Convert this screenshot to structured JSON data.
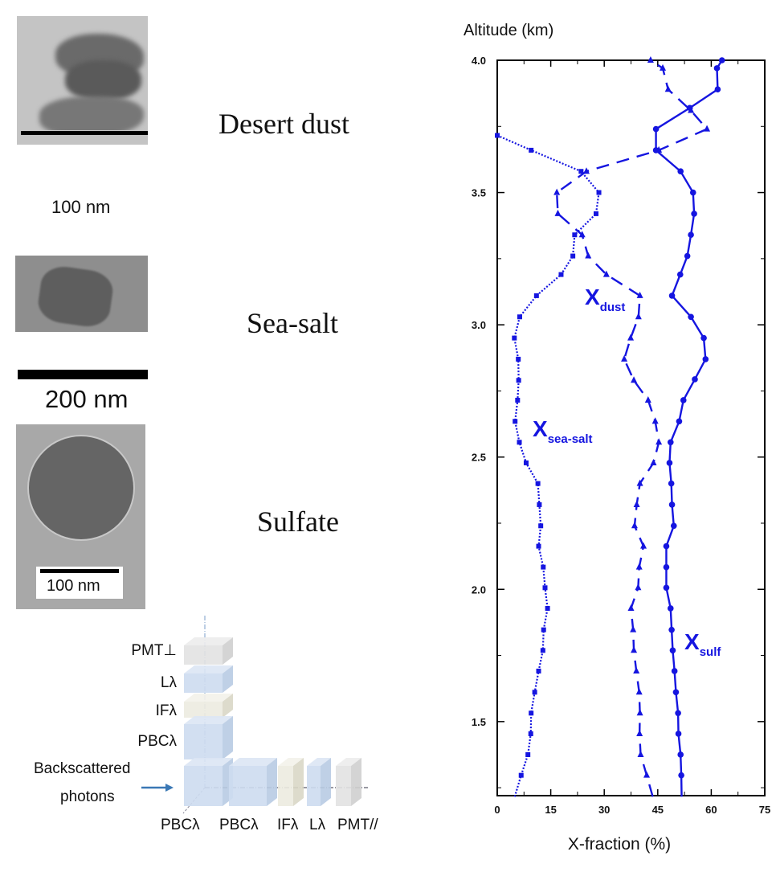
{
  "particles": [
    {
      "name": "Desert dust",
      "scale": "100 nm"
    },
    {
      "name": "Sea-salt",
      "scale": "200 nm"
    },
    {
      "name": "Sulfate",
      "scale": "100 nm"
    }
  ],
  "diagram": {
    "vertical_labels": [
      "PMT⊥",
      "Lλ",
      "IFλ",
      "PBCλ"
    ],
    "input_label_1": "Backscattered",
    "input_label_2": "photons",
    "horizontal_labels": [
      "PBCλ",
      "PBCλ",
      "IFλ",
      "Lλ",
      "PMT//"
    ]
  },
  "chart_data": {
    "type": "line",
    "orientation": "vertical-profile",
    "title": "",
    "xlabel": "X-fraction (%)",
    "ylabel": "Altitude (km)",
    "xlim": [
      0,
      75
    ],
    "ylim": [
      1.22,
      4.0
    ],
    "xticks": [
      "0",
      "15",
      "30",
      "45",
      "60",
      "75"
    ],
    "yticks": [
      "1.5",
      "2.0",
      "2.5",
      "3.0",
      "3.5",
      "4.0"
    ],
    "grid": false,
    "color": "#1515e0",
    "series": [
      {
        "name": "X",
        "sub": "sulf",
        "marker": "circle",
        "style": "solid",
        "points": [
          [
            51.7,
            1.216
          ],
          [
            51.6,
            1.297
          ],
          [
            51.4,
            1.375
          ],
          [
            50.8,
            1.454
          ],
          [
            50.7,
            1.532
          ],
          [
            50.1,
            1.611
          ],
          [
            49.7,
            1.691
          ],
          [
            49.2,
            1.769
          ],
          [
            48.9,
            1.847
          ],
          [
            48.6,
            1.928
          ],
          [
            47.4,
            2.006
          ],
          [
            47.4,
            2.084
          ],
          [
            47.4,
            2.163
          ],
          [
            49.5,
            2.24
          ],
          [
            49.0,
            2.32
          ],
          [
            48.8,
            2.4
          ],
          [
            48.3,
            2.478
          ],
          [
            48.6,
            2.556
          ],
          [
            51.0,
            2.635
          ],
          [
            52.2,
            2.715
          ],
          [
            55.4,
            2.794
          ],
          [
            58.4,
            2.87
          ],
          [
            57.9,
            2.95
          ],
          [
            54.3,
            3.03
          ],
          [
            49.0,
            3.11
          ],
          [
            51.3,
            3.19
          ],
          [
            53.3,
            3.26
          ],
          [
            54.3,
            3.34
          ],
          [
            55.2,
            3.42
          ],
          [
            54.9,
            3.5
          ],
          [
            51.4,
            3.58
          ],
          [
            44.5,
            3.66
          ],
          [
            44.5,
            3.74
          ],
          [
            54.0,
            3.82
          ],
          [
            61.8,
            3.89
          ],
          [
            61.6,
            3.97
          ],
          [
            63.0,
            4.0
          ]
        ]
      },
      {
        "name": "X",
        "sub": "sea-salt",
        "marker": "square",
        "style": "dotted",
        "points": [
          [
            4.9,
            1.216
          ],
          [
            6.7,
            1.297
          ],
          [
            8.6,
            1.375
          ],
          [
            9.4,
            1.454
          ],
          [
            9.5,
            1.532
          ],
          [
            10.5,
            1.611
          ],
          [
            11.6,
            1.691
          ],
          [
            12.8,
            1.769
          ],
          [
            13.0,
            1.847
          ],
          [
            14.1,
            1.928
          ],
          [
            13.4,
            2.006
          ],
          [
            12.9,
            2.084
          ],
          [
            11.6,
            2.163
          ],
          [
            12.2,
            2.24
          ],
          [
            11.8,
            2.32
          ],
          [
            11.4,
            2.4
          ],
          [
            8.1,
            2.478
          ],
          [
            6.2,
            2.556
          ],
          [
            5.0,
            2.635
          ],
          [
            5.7,
            2.715
          ],
          [
            6.0,
            2.79
          ],
          [
            5.9,
            2.87
          ],
          [
            4.8,
            2.95
          ],
          [
            6.3,
            3.03
          ],
          [
            11.0,
            3.11
          ],
          [
            17.9,
            3.19
          ],
          [
            21.2,
            3.26
          ],
          [
            21.7,
            3.34
          ],
          [
            27.7,
            3.42
          ],
          [
            28.5,
            3.5
          ],
          [
            23.5,
            3.58
          ],
          [
            9.5,
            3.66
          ],
          [
            0,
            3.716
          ]
        ]
      },
      {
        "name": "X",
        "sub": "dust",
        "marker": "triangle",
        "style": "dashed",
        "points": [
          [
            43.6,
            1.216
          ],
          [
            41.9,
            1.297
          ],
          [
            40.2,
            1.375
          ],
          [
            39.9,
            1.454
          ],
          [
            40.0,
            1.532
          ],
          [
            39.8,
            1.611
          ],
          [
            39.0,
            1.691
          ],
          [
            38.3,
            1.769
          ],
          [
            38.1,
            1.847
          ],
          [
            37.5,
            1.928
          ],
          [
            39.5,
            2.006
          ],
          [
            39.8,
            2.084
          ],
          [
            41.0,
            2.163
          ],
          [
            38.5,
            2.24
          ],
          [
            39.1,
            2.32
          ],
          [
            40.0,
            2.4
          ],
          [
            43.8,
            2.478
          ],
          [
            45.3,
            2.556
          ],
          [
            44.3,
            2.635
          ],
          [
            42.3,
            2.715
          ],
          [
            38.3,
            2.79
          ],
          [
            35.6,
            2.87
          ],
          [
            37.4,
            2.95
          ],
          [
            39.6,
            3.03
          ],
          [
            40.0,
            3.11
          ],
          [
            30.6,
            3.19
          ],
          [
            25.5,
            3.26
          ],
          [
            23.8,
            3.34
          ],
          [
            17.0,
            3.42
          ],
          [
            16.7,
            3.5
          ],
          [
            25.0,
            3.58
          ],
          [
            45.3,
            3.66
          ],
          [
            58.8,
            3.74
          ],
          [
            54.3,
            3.81
          ],
          [
            47.9,
            3.89
          ],
          [
            46.4,
            3.97
          ],
          [
            43.0,
            4.0
          ]
        ]
      }
    ]
  }
}
